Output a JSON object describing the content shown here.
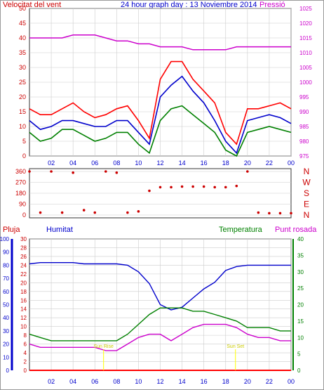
{
  "header": {
    "title": "24 hour graph day : 13 Noviembre 2014",
    "wind_label": "Velocitat del vent",
    "pressure_label": "Pressió"
  },
  "bottom_header": {
    "rain_label": "Pluja",
    "humidity_label": "Humitat",
    "temperature_label": "Temperatura",
    "dew_label": "Punt rosada"
  },
  "annotations": {
    "sunrise": "Sun Rise",
    "sunset": "Sun Set"
  },
  "colors": {
    "wind_gust": "#ff0000",
    "wind_avg": "#0000cc",
    "wind_low": "#008000",
    "pressure": "#cc00cc",
    "direction": "#cc0000",
    "humidity": "#0000cc",
    "temperature": "#008000",
    "dewpoint": "#cc00cc",
    "rain": "#ff0000",
    "sun_marker": "#ffff00"
  },
  "chart_data": [
    {
      "type": "line",
      "title": "24 hour graph day : 13 Noviembre 2014",
      "ylabel": "Velocitat del vent",
      "y2label": "Pressió",
      "ylim": [
        0,
        50
      ],
      "y2lim": [
        975,
        1025
      ],
      "y_ticks": [
        0,
        5,
        10,
        15,
        20,
        25,
        30,
        35,
        40,
        45,
        50
      ],
      "y2_ticks": [
        975,
        980,
        985,
        990,
        995,
        1000,
        1005,
        1010,
        1015,
        1020,
        1025
      ],
      "x_ticks": [
        "02",
        "04",
        "06",
        "08",
        "10",
        "12",
        "14",
        "16",
        "18",
        "20",
        "22",
        "00"
      ],
      "x": [
        0,
        1,
        2,
        3,
        4,
        5,
        6,
        7,
        8,
        9,
        10,
        11,
        12,
        13,
        14,
        15,
        16,
        17,
        18,
        19,
        20,
        21,
        22,
        23,
        24
      ],
      "series": [
        {
          "key": "gust",
          "values": [
            16,
            14,
            14,
            16,
            18,
            15,
            13,
            14,
            16,
            17,
            12,
            6,
            26,
            32,
            32,
            26,
            22,
            18,
            8,
            4,
            16,
            16,
            17,
            18,
            16
          ]
        },
        {
          "key": "average",
          "values": [
            12,
            9,
            10,
            12,
            12,
            11,
            10,
            10,
            12,
            12,
            8,
            4,
            20,
            24,
            27,
            22,
            18,
            12,
            5,
            1,
            12,
            13,
            14,
            13,
            11
          ]
        },
        {
          "key": "low",
          "values": [
            8,
            5,
            6,
            9,
            9,
            7,
            5,
            6,
            8,
            8,
            4,
            1,
            12,
            16,
            17,
            14,
            11,
            8,
            2,
            0,
            8,
            9,
            10,
            9,
            8
          ]
        },
        {
          "key": "pressure",
          "axis": "y2",
          "values": [
            1015,
            1015,
            1015,
            1015,
            1016,
            1016,
            1016,
            1015,
            1014,
            1014,
            1013,
            1013,
            1012,
            1012,
            1012,
            1011,
            1011,
            1011,
            1011,
            1012,
            1012,
            1012,
            1012,
            1012,
            1012
          ]
        }
      ]
    },
    {
      "type": "scatter",
      "y_ticks": [
        0,
        90,
        180,
        270,
        360
      ],
      "compass_labels": [
        "N",
        "W",
        "S",
        "E",
        "N"
      ],
      "ylim": [
        0,
        360
      ],
      "x_ticks": [
        "02",
        "04",
        "06",
        "08",
        "10",
        "12",
        "14",
        "16",
        "18",
        "20",
        "22",
        "00"
      ],
      "x": [
        0,
        1,
        2,
        3,
        4,
        5,
        6,
        7,
        8,
        9,
        10,
        11,
        12,
        13,
        14,
        15,
        16,
        17,
        18,
        19,
        20,
        21,
        22,
        23,
        24
      ],
      "values": [
        360,
        20,
        360,
        20,
        350,
        40,
        20,
        360,
        350,
        20,
        30,
        200,
        230,
        230,
        235,
        235,
        235,
        230,
        230,
        240,
        360,
        20,
        15,
        15,
        15
      ]
    },
    {
      "type": "line",
      "ylabel": "Humitat",
      "y_ticks_humidity": [
        0,
        10,
        20,
        30,
        40,
        50,
        60,
        70,
        80,
        90,
        100
      ],
      "y_ticks_rain": [
        0,
        2,
        4,
        6,
        8,
        10,
        12,
        14,
        16,
        18,
        20,
        22,
        24,
        26,
        28,
        30
      ],
      "y_ticks_temp": [
        0,
        5,
        10,
        15,
        20,
        25,
        30,
        35,
        40
      ],
      "ylim_humidity": [
        0,
        100
      ],
      "ylim_temp": [
        0,
        40
      ],
      "x_ticks": [
        "02",
        "04",
        "06",
        "08",
        "10",
        "12",
        "14",
        "16",
        "18",
        "20",
        "22",
        "00"
      ],
      "x": [
        0,
        1,
        2,
        3,
        4,
        5,
        6,
        7,
        8,
        9,
        10,
        11,
        12,
        13,
        14,
        15,
        16,
        17,
        18,
        19,
        20,
        21,
        22,
        23,
        24
      ],
      "series": [
        {
          "key": "humidity",
          "values": [
            81,
            82,
            82,
            82,
            82,
            81,
            81,
            81,
            81,
            80,
            75,
            66,
            50,
            46,
            48,
            55,
            62,
            67,
            76,
            79,
            80,
            80,
            80,
            80,
            80
          ]
        },
        {
          "key": "temperature",
          "values": [
            11,
            10,
            9,
            9,
            9,
            9,
            9,
            9,
            9,
            11,
            14,
            17,
            19,
            19,
            19,
            18,
            18,
            17,
            16,
            15,
            13,
            13,
            13,
            12,
            12
          ]
        },
        {
          "key": "dewpoint",
          "values": [
            8,
            7,
            7,
            7,
            7,
            7,
            7,
            6,
            6,
            8,
            10,
            11,
            11,
            9,
            11,
            13,
            14,
            14,
            14,
            13,
            11,
            10,
            10,
            9,
            9
          ]
        },
        {
          "key": "rain",
          "values": [
            0,
            0,
            0,
            0,
            0,
            0,
            0,
            0,
            0,
            0,
            0,
            0,
            0,
            0,
            0,
            0,
            0,
            0,
            0,
            0,
            0,
            0,
            0,
            0,
            0
          ]
        }
      ],
      "sunrise_x": 6.8,
      "sunset_x": 18.9
    }
  ]
}
